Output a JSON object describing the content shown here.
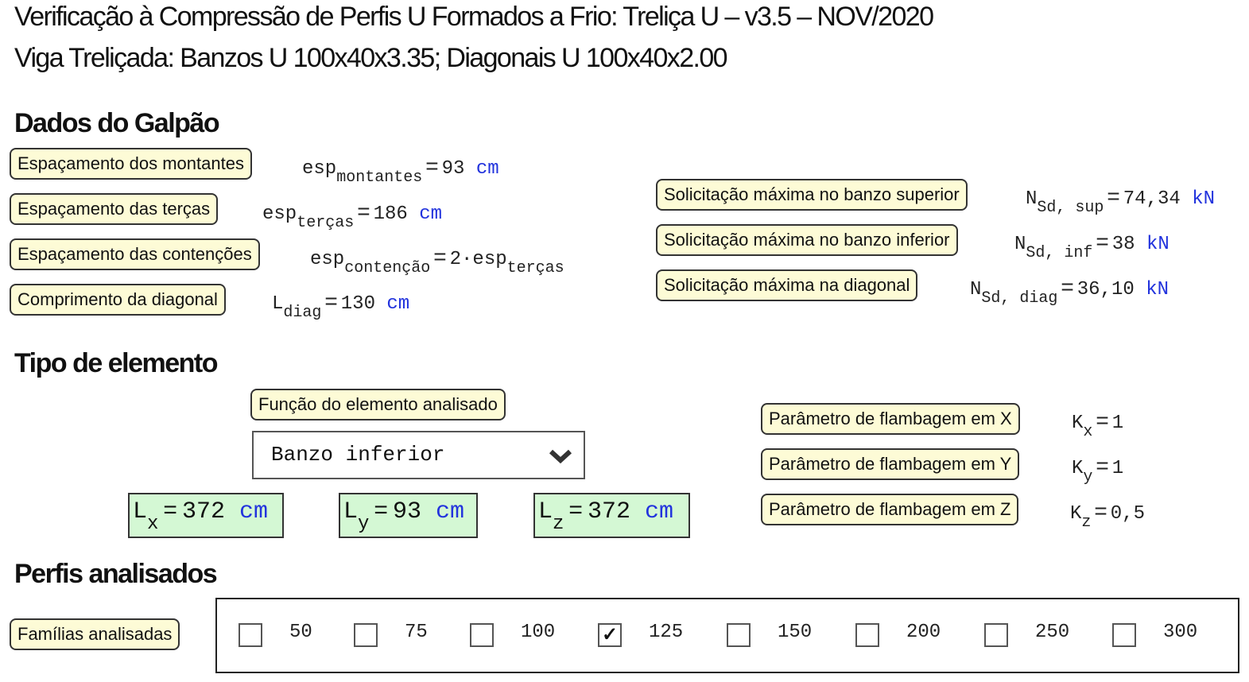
{
  "header": {
    "title": "Verificação à Compressão de Perfis U Formados a Frio: Treliça U – v3.5 – NOV/2020",
    "subtitle": "Viga Treliçada: Banzos U 100x40x3.35; Diagonais U 100x40x2.00"
  },
  "galpao": {
    "heading": "Dados do Galpão",
    "rows": [
      {
        "label": "Espaçamento dos montantes",
        "sym": "esp",
        "sub": "montantes",
        "value": "93",
        "unit": "cm"
      },
      {
        "label": "Espaçamento das terças",
        "sym": "esp",
        "sub": "terças",
        "value": "186",
        "unit": "cm"
      },
      {
        "label": "Espaçamento das contenções",
        "sym": "esp",
        "sub": "contenção",
        "value": "2·esp",
        "sub2": "terças"
      },
      {
        "label": "Comprimento da diagonal",
        "sym": "L",
        "sub": "diag",
        "value": "130",
        "unit": "cm"
      }
    ],
    "forces": [
      {
        "label": "Solicitação máxima no banzo superior",
        "sym": "N",
        "sub": "Sd, sup",
        "value": "74,34",
        "unit": "kN"
      },
      {
        "label": "Solicitação máxima no banzo inferior",
        "sym": "N",
        "sub": "Sd, inf",
        "value": "38",
        "unit": "kN"
      },
      {
        "label": "Solicitação máxima na diagonal",
        "sym": "N",
        "sub": "Sd, diag",
        "value": "36,10",
        "unit": "kN"
      }
    ]
  },
  "tipo": {
    "heading": "Tipo de elemento",
    "function_label": "Função do elemento analisado",
    "function_selected": "Banzo inferior",
    "lengths": [
      {
        "sym": "L",
        "sub": "x",
        "value": "372",
        "unit": "cm"
      },
      {
        "sym": "L",
        "sub": "y",
        "value": "93",
        "unit": "cm"
      },
      {
        "sym": "L",
        "sub": "z",
        "value": "372",
        "unit": "cm"
      }
    ],
    "k": [
      {
        "label": "Parâmetro de flambagem em X",
        "sym": "K",
        "sub": "x",
        "value": "1"
      },
      {
        "label": "Parâmetro de flambagem em Y",
        "sym": "K",
        "sub": "y",
        "value": "1"
      },
      {
        "label": "Parâmetro de flambagem em Z",
        "sym": "K",
        "sub": "z",
        "value": "0,5"
      }
    ]
  },
  "perfis": {
    "heading": "Perfis analisados",
    "families_label": "Famílias analisadas",
    "families": [
      {
        "label": "50",
        "checked": false
      },
      {
        "label": "75",
        "checked": false
      },
      {
        "label": "100",
        "checked": false
      },
      {
        "label": "125",
        "checked": true
      },
      {
        "label": "150",
        "checked": false
      },
      {
        "label": "200",
        "checked": false
      },
      {
        "label": "250",
        "checked": false
      },
      {
        "label": "300",
        "checked": false
      }
    ],
    "check_glyph": "✓"
  },
  "colors": {
    "label_bg": "#fdfbd6",
    "result_bg": "#d4f8d4",
    "unit": "#2233dd"
  }
}
